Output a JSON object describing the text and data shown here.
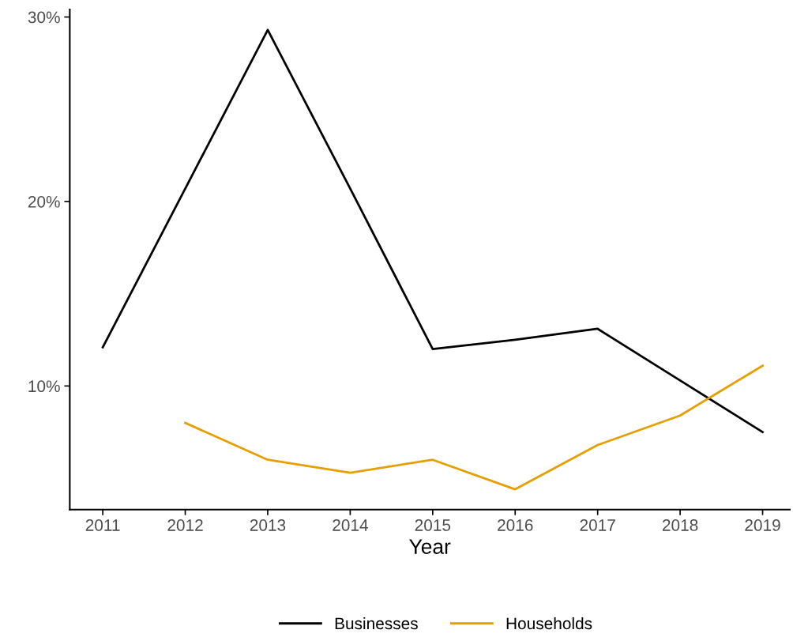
{
  "chart_data": {
    "type": "line",
    "xlabel": "Year",
    "x": [
      2011,
      2012,
      2013,
      2014,
      2015,
      2016,
      2017,
      2018,
      2019
    ],
    "series": [
      {
        "name": "Businesses",
        "color": "#000000",
        "values": [
          12.1,
          20.7,
          29.3,
          20.7,
          12.0,
          12.5,
          13.1,
          10.3,
          7.5
        ]
      },
      {
        "name": "Households",
        "color": "#e69f00",
        "values": [
          null,
          8.0,
          6.0,
          5.3,
          6.0,
          4.4,
          6.8,
          8.4,
          11.1
        ]
      }
    ],
    "xlim": [
      2010.6,
      2019.33
    ],
    "xticks": [
      2011,
      2012,
      2013,
      2014,
      2015,
      2016,
      2017,
      2018,
      2019
    ],
    "ylim": [
      3.3,
      30.4
    ],
    "yticks": [
      {
        "value": 10,
        "label": "10%"
      },
      {
        "value": 20,
        "label": "20%"
      },
      {
        "value": 30,
        "label": "30%"
      }
    ],
    "grid": false,
    "legend": "bottom",
    "line_style": "solid",
    "marker": "none"
  }
}
